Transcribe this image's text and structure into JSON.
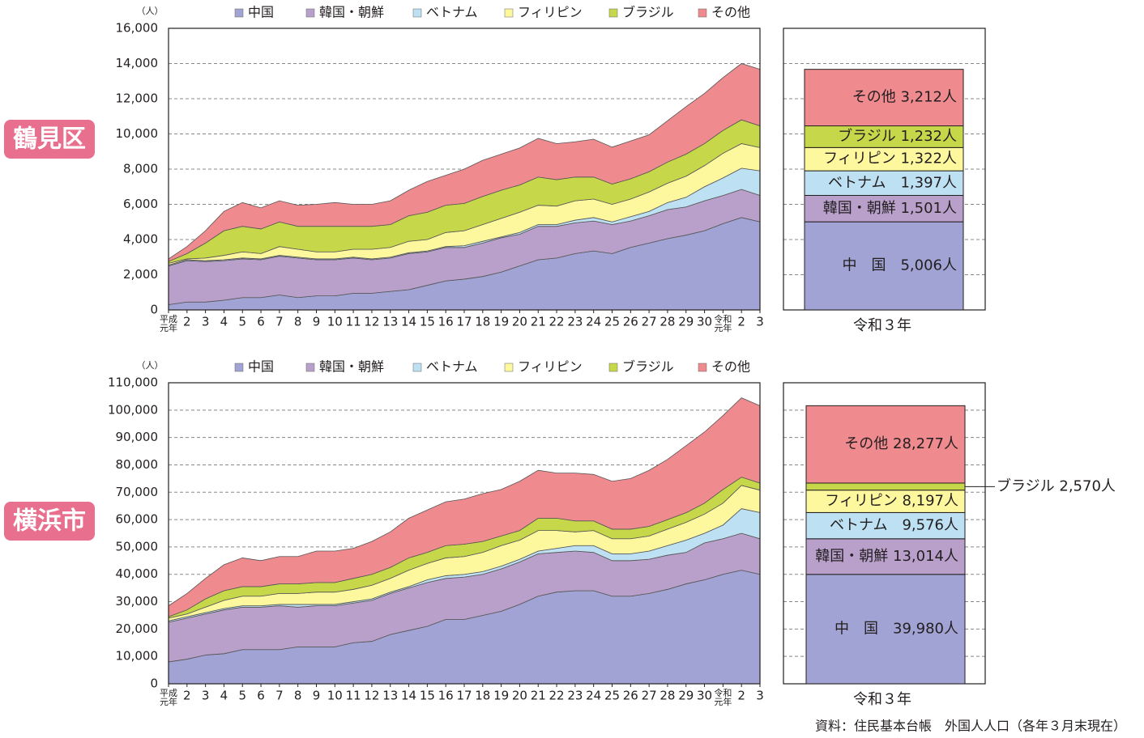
{
  "chart_data": [
    {
      "type": "area",
      "region": "鶴見区",
      "unit": "（人）",
      "categories": [
        "平成元年",
        "2",
        "3",
        "4",
        "5",
        "6",
        "7",
        "8",
        "9",
        "10",
        "11",
        "12",
        "13",
        "14",
        "15",
        "16",
        "17",
        "18",
        "19",
        "20",
        "21",
        "22",
        "23",
        "24",
        "25",
        "26",
        "27",
        "28",
        "29",
        "30",
        "令和元年",
        "2",
        "3"
      ],
      "ylim": [
        0,
        16000
      ],
      "yticks": [
        0,
        {
          "value": 2000,
          "label": "2,000"
        },
        {
          "value": 4000,
          "label": "4,000"
        },
        {
          "value": 6000,
          "label": "6,000"
        },
        {
          "value": 8000,
          "label": "8,000"
        },
        {
          "value": 10000,
          "label": "10,000"
        },
        {
          "value": 12000,
          "label": "12,000"
        },
        {
          "value": 14000,
          "label": "14,000"
        },
        {
          "value": 16000,
          "label": "16,000"
        }
      ],
      "grid": true,
      "series": [
        {
          "name": "中国",
          "color": "#a0a3d3",
          "values": [
            300,
            450,
            450,
            550,
            700,
            700,
            850,
            700,
            800,
            800,
            950,
            950,
            1050,
            1150,
            1400,
            1650,
            1750,
            1900,
            2150,
            2500,
            2850,
            2950,
            3200,
            3350,
            3200,
            3550,
            3800,
            4050,
            4250,
            4500,
            4900,
            5250,
            5006
          ]
        },
        {
          "name": "韓国・朝鮮",
          "color": "#b9a0cb",
          "values": [
            2200,
            2350,
            2300,
            2250,
            2200,
            2150,
            2200,
            2250,
            2050,
            2050,
            2000,
            1900,
            1900,
            2050,
            1900,
            1900,
            1800,
            1900,
            1950,
            1800,
            1900,
            1800,
            1750,
            1700,
            1650,
            1500,
            1550,
            1650,
            1600,
            1700,
            1600,
            1600,
            1501
          ]
        },
        {
          "name": "ベトナム",
          "color": "#bde0f3",
          "values": [
            50,
            50,
            50,
            50,
            50,
            50,
            50,
            50,
            50,
            50,
            50,
            50,
            50,
            50,
            50,
            50,
            100,
            100,
            50,
            100,
            100,
            100,
            150,
            200,
            150,
            250,
            250,
            400,
            550,
            800,
            1000,
            1200,
            1397
          ]
        },
        {
          "name": "フィリピン",
          "color": "#fdf79e",
          "values": [
            100,
            50,
            150,
            250,
            350,
            300,
            500,
            450,
            400,
            400,
            450,
            550,
            550,
            650,
            650,
            800,
            850,
            950,
            1050,
            1150,
            1100,
            1050,
            1100,
            1050,
            1000,
            1000,
            1100,
            1100,
            1200,
            1200,
            1400,
            1400,
            1322
          ]
        },
        {
          "name": "ブラジル",
          "color": "#c6d84a",
          "values": [
            100,
            300,
            850,
            1400,
            1450,
            1400,
            1400,
            1300,
            1450,
            1450,
            1300,
            1300,
            1300,
            1450,
            1550,
            1550,
            1550,
            1600,
            1600,
            1550,
            1600,
            1500,
            1350,
            1250,
            1150,
            1150,
            1150,
            1200,
            1250,
            1250,
            1300,
            1350,
            1232
          ]
        },
        {
          "name": "その他",
          "color": "#ef8a8e",
          "values": [
            150,
            400,
            700,
            1100,
            1350,
            1200,
            1200,
            1200,
            1250,
            1350,
            1250,
            1250,
            1350,
            1450,
            1750,
            1700,
            1950,
            2050,
            2050,
            2100,
            2200,
            2050,
            2000,
            2150,
            2100,
            2150,
            2100,
            2350,
            2700,
            2850,
            3000,
            3200,
            3212
          ]
        }
      ],
      "bar": {
        "category": "令和３年",
        "values": [
          5006,
          1501,
          1397,
          1322,
          1232,
          3212
        ],
        "value_labels": [
          "中　国　5,006人",
          "韓国・朝鮮 1,501人",
          "ベトナム　1,397人",
          "フィリピン 1,322人",
          "ブラジル 1,232人",
          "その他 3,212人"
        ]
      }
    },
    {
      "type": "area",
      "region": "横浜市",
      "unit": "（人）",
      "categories": [
        "平成元年",
        "2",
        "3",
        "4",
        "5",
        "6",
        "7",
        "8",
        "9",
        "10",
        "11",
        "12",
        "13",
        "14",
        "15",
        "16",
        "17",
        "18",
        "19",
        "20",
        "21",
        "22",
        "23",
        "24",
        "25",
        "26",
        "27",
        "28",
        "29",
        "30",
        "令和元年",
        "2",
        "3"
      ],
      "ylim": [
        0,
        110000
      ],
      "yticks": [
        0,
        {
          "value": 10000,
          "label": "10,000"
        },
        {
          "value": 20000,
          "label": "20,000"
        },
        {
          "value": 30000,
          "label": "30,000"
        },
        {
          "value": 40000,
          "label": "40,000"
        },
        {
          "value": 50000,
          "label": "50,000"
        },
        {
          "value": 60000,
          "label": "60,000"
        },
        {
          "value": 70000,
          "label": "70,000"
        },
        {
          "value": 80000,
          "label": "80,000"
        },
        {
          "value": 90000,
          "label": "90,000"
        },
        {
          "value": 100000,
          "label": "100,000"
        },
        {
          "value": 110000,
          "label": "110,000"
        }
      ],
      "grid": true,
      "series": [
        {
          "name": "中国",
          "color": "#a0a3d3",
          "values": [
            8000,
            9000,
            10500,
            11000,
            12500,
            12500,
            12500,
            13500,
            13500,
            13500,
            15000,
            15500,
            18000,
            19500,
            21000,
            23500,
            23500,
            25000,
            26500,
            29000,
            32000,
            33500,
            34000,
            34000,
            32000,
            32000,
            33000,
            34500,
            36500,
            38000,
            40000,
            41500,
            39980
          ]
        },
        {
          "name": "韓国・朝鮮",
          "color": "#b9a0cb",
          "values": [
            14500,
            15000,
            15000,
            16000,
            15500,
            15500,
            16000,
            14500,
            15000,
            15000,
            14500,
            15000,
            15000,
            15500,
            16000,
            15000,
            15500,
            15000,
            15500,
            15500,
            15500,
            14500,
            14500,
            14000,
            13000,
            13000,
            12500,
            12500,
            11500,
            13500,
            13000,
            13500,
            13014
          ]
        },
        {
          "name": "ベトナム",
          "color": "#bde0f3",
          "values": [
            500,
            500,
            500,
            500,
            500,
            500,
            500,
            1000,
            500,
            500,
            500,
            500,
            500,
            500,
            1000,
            1000,
            1000,
            1000,
            1000,
            1000,
            1000,
            1500,
            2000,
            2500,
            2500,
            2500,
            3000,
            3500,
            4500,
            3500,
            5000,
            9000,
            9576
          ]
        },
        {
          "name": "フィリピン",
          "color": "#fdf79e",
          "values": [
            1000,
            1000,
            2000,
            3000,
            3500,
            3500,
            4000,
            4000,
            4500,
            4500,
            4500,
            5000,
            5000,
            6000,
            6000,
            6500,
            6500,
            7000,
            7500,
            7000,
            7500,
            6500,
            5000,
            5500,
            5500,
            5500,
            5500,
            6000,
            6500,
            7000,
            8000,
            8500,
            8197
          ]
        },
        {
          "name": "ブラジル",
          "color": "#c6d84a",
          "values": [
            500,
            1500,
            3000,
            3500,
            3500,
            3500,
            3500,
            3500,
            3500,
            3500,
            4000,
            4000,
            4000,
            4500,
            4000,
            4500,
            4500,
            4000,
            3500,
            3500,
            4500,
            4500,
            4000,
            3500,
            3500,
            3500,
            3500,
            3500,
            3500,
            4000,
            5000,
            3000,
            2570
          ]
        },
        {
          "name": "その他",
          "color": "#ef8a8e",
          "values": [
            4000,
            6000,
            7500,
            9500,
            10500,
            9500,
            10000,
            10000,
            11500,
            11500,
            11000,
            12000,
            13000,
            14500,
            15500,
            16000,
            16500,
            17500,
            17000,
            18000,
            17500,
            16500,
            17500,
            17000,
            17500,
            18500,
            20500,
            22000,
            24500,
            26000,
            27000,
            29000,
            28277
          ]
        }
      ],
      "bar": {
        "category": "令和３年",
        "values": [
          39980,
          13014,
          9576,
          8197,
          2570,
          28277
        ],
        "value_labels": [
          "中　国　39,980人",
          "韓国・朝鮮 13,014人",
          "ベトナム　9,576人",
          "フィリピン 8,197人",
          "ブラジル 2,570人",
          "その他 28,277人"
        ]
      }
    }
  ],
  "source": "資料：住民基本台帳　外国人人口（各年３月末現在）"
}
